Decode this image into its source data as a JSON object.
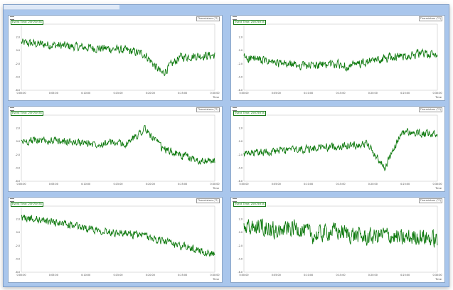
{
  "window": {
    "title": ""
  },
  "colors": {
    "line": "#0f7a0f",
    "frame": "#a9c6ec"
  },
  "panels": [
    {
      "source": "Thermistors (°F)",
      "legend": "Event Time: 25H75H78",
      "xlabel": "Time",
      "ylim": [
        -6,
        4
      ],
      "yticks": [
        "4.0",
        "2.0",
        "0.0",
        "-2.0",
        "-4.0",
        "-6.0"
      ],
      "xticks": [
        "0:00:00",
        "0:05:00",
        "0:10:00",
        "0:15:00",
        "0:20:00",
        "0:25:00",
        "0:30:00"
      ],
      "trend": [
        1.2,
        1.0,
        0.8,
        0.6,
        0.4,
        0.3,
        0.0,
        -0.5,
        -3.5,
        -1.0,
        -0.8,
        -0.7
      ],
      "noise": 0.9
    },
    {
      "source": "Thermistors (°F)",
      "legend": "Event Time: 25H75H78",
      "xlabel": "Time",
      "ylim": [
        -6,
        4
      ],
      "yticks": [
        "4.0",
        "2.0",
        "0.0",
        "-2.0",
        "-4.0",
        "-6.0"
      ],
      "xticks": [
        "0:00:00",
        "0:05:00",
        "0:10:00",
        "0:15:00",
        "0:20:00",
        "0:25:00",
        "0:30:00"
      ],
      "trend": [
        -1.0,
        -1.5,
        -2.0,
        -2.2,
        -2.3,
        -2.0,
        -2.4,
        -1.8,
        -1.2,
        -0.8,
        -0.5,
        -0.6
      ],
      "noise": 0.9
    },
    {
      "source": "Thermistors (°F)",
      "legend": "Event Time: 25H75H78",
      "xlabel": "Time",
      "ylim": [
        -6,
        4
      ],
      "yticks": [
        "4.0",
        "2.0",
        "0.0",
        "-2.0",
        "-4.0",
        "-6.0"
      ],
      "xticks": [
        "0:00:00",
        "0:05:00",
        "0:10:00",
        "0:15:00",
        "0:20:00",
        "0:25:00",
        "0:30:00"
      ],
      "trend": [
        0.0,
        0.2,
        0.1,
        -0.1,
        -0.3,
        -0.2,
        -0.4,
        2.0,
        -1.0,
        -2.0,
        -2.8,
        -3.0
      ],
      "noise": 0.8
    },
    {
      "source": "Thermistors (°F)",
      "legend": "Event Time: 25H75H78",
      "xlabel": "Time",
      "ylim": [
        -6,
        4
      ],
      "yticks": [
        "4.0",
        "2.0",
        "0.0",
        "-2.0",
        "-4.0",
        "-6.0"
      ],
      "xticks": [
        "0:00:00",
        "0:05:00",
        "0:10:00",
        "0:15:00",
        "0:20:00",
        "0:25:00",
        "0:30:00"
      ],
      "trend": [
        -2.0,
        -1.6,
        -1.4,
        -1.2,
        -1.0,
        -0.8,
        -0.6,
        -0.3,
        -4.0,
        1.5,
        1.2,
        1.0
      ],
      "noise": 0.8
    },
    {
      "source": "Thermistors (°F)",
      "legend": "Event Time: 25H75H78",
      "xlabel": "Time",
      "ylim": [
        -6,
        4
      ],
      "yticks": [
        "4.0",
        "2.0",
        "0.0",
        "-2.0",
        "-4.0",
        "-6.0"
      ],
      "xticks": [
        "0:00:00",
        "0:05:00",
        "0:10:00",
        "0:15:00",
        "0:20:00",
        "0:25:00",
        "0:30:00"
      ],
      "trend": [
        2.2,
        2.0,
        1.5,
        1.0,
        0.6,
        0.2,
        -0.2,
        -0.5,
        -1.2,
        -2.0,
        -2.6,
        -3.2
      ],
      "noise": 0.8
    },
    {
      "source": "Thermistors (°F)",
      "legend": "Event Time: 25H75H78",
      "xlabel": "Time",
      "ylim": [
        -6,
        4
      ],
      "yticks": [
        "4.0",
        "2.0",
        "0.0",
        "-2.0",
        "-4.0",
        "-6.0"
      ],
      "xticks": [
        "0:00:00",
        "0:05:00",
        "0:10:00",
        "0:15:00",
        "0:20:00",
        "0:25:00",
        "0:30:00"
      ],
      "trend": [
        0.5,
        1.0,
        0.2,
        0.8,
        -0.5,
        0.3,
        -0.2,
        -0.8,
        -0.3,
        -1.0,
        -0.5,
        -1.2
      ],
      "noise": 1.8
    }
  ]
}
